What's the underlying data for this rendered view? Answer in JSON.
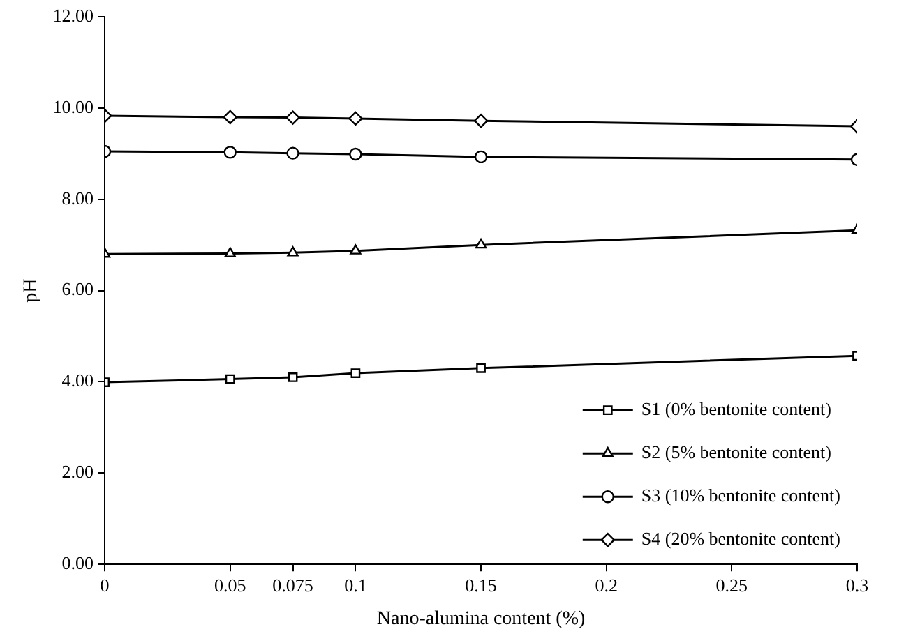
{
  "chart_data": {
    "type": "line",
    "xlabel": "Nano-alumina content (%)",
    "ylabel": "pH",
    "x": [
      0,
      0.05,
      0.075,
      0.1,
      0.15,
      0.3
    ],
    "series": [
      {
        "name": "S1 (0% bentonite content)",
        "color": "#000000",
        "marker": "square",
        "values": [
          3.99,
          4.06,
          4.1,
          4.19,
          4.3,
          4.57
        ]
      },
      {
        "name": "S2 (5% bentonite content)",
        "color": "#000000",
        "marker": "triangle",
        "values": [
          6.8,
          6.81,
          6.83,
          6.87,
          7.0,
          7.32
        ]
      },
      {
        "name": "S3 (10% bentonite content)",
        "color": "#000000",
        "marker": "circle",
        "values": [
          9.05,
          9.03,
          9.01,
          8.99,
          8.93,
          8.87
        ]
      },
      {
        "name": "S4 (20% bentonite content)",
        "color": "#000000",
        "marker": "diamond",
        "values": [
          9.83,
          9.8,
          9.79,
          9.77,
          9.72,
          9.6
        ]
      }
    ],
    "xlim": [
      0,
      0.3
    ],
    "xticks": [
      0,
      0.05,
      0.075,
      0.1,
      0.15,
      0.2,
      0.25,
      0.3
    ],
    "ylim": [
      0,
      12
    ],
    "yticks": [
      {
        "value": 0,
        "label": "0.00"
      },
      {
        "value": 2,
        "label": "2.00"
      },
      {
        "value": 4,
        "label": "4.00"
      },
      {
        "value": 6,
        "label": "6.00"
      },
      {
        "value": 8,
        "label": "8.00"
      },
      {
        "value": 10,
        "label": "10.00"
      },
      {
        "value": 12,
        "label": "12.00"
      }
    ],
    "grid": false,
    "legend": "bottom right",
    "line_style": "solid"
  }
}
